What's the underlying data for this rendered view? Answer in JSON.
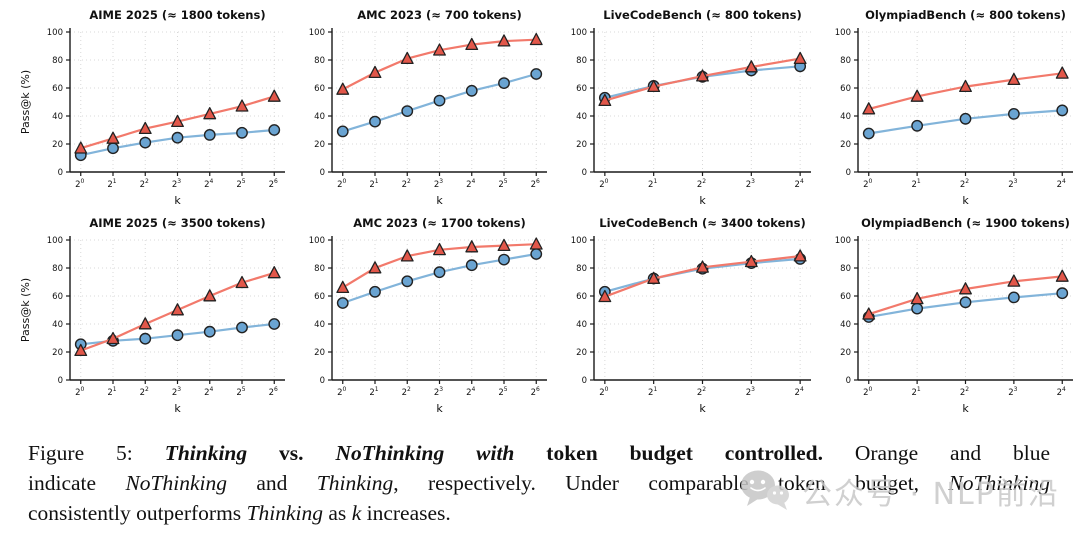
{
  "figure": {
    "caption_lines": [
      [
        {
          "t": "Figure 5: ",
          "b": false,
          "i": false
        },
        {
          "t": "Thinking",
          "b": true,
          "i": true
        },
        {
          "t": " vs. ",
          "b": true,
          "i": false
        },
        {
          "t": "NoThinking",
          "b": true,
          "i": true
        },
        {
          "t": " ",
          "b": true,
          "i": false
        },
        {
          "t": "with",
          "b": true,
          "i": true
        },
        {
          "t": " token budget controlled. ",
          "b": true,
          "i": false
        },
        {
          "t": " Orange and blue",
          "b": false,
          "i": false
        }
      ],
      [
        {
          "t": "indicate ",
          "b": false,
          "i": false
        },
        {
          "t": "NoThinking",
          "b": false,
          "i": true
        },
        {
          "t": " and ",
          "b": false,
          "i": false
        },
        {
          "t": "Thinking",
          "b": false,
          "i": true
        },
        {
          "t": ", respectively. Under comparable token budget, ",
          "b": false,
          "i": false
        },
        {
          "t": "NoThinking",
          "b": false,
          "i": true
        }
      ],
      [
        {
          "t": "consistently outperforms ",
          "b": false,
          "i": false
        },
        {
          "t": "Thinking",
          "b": false,
          "i": true
        },
        {
          "t": " as ",
          "b": false,
          "i": false
        },
        {
          "t": "k",
          "b": false,
          "i": true
        },
        {
          "t": " increases.",
          "b": false,
          "i": false
        }
      ]
    ],
    "watermark": {
      "text": "公众号 · NLP前沿",
      "icon": "wechat-icon",
      "color": "#c8c8c8"
    }
  },
  "colors": {
    "orange_line": "#f2796b",
    "orange_marker_fill": "#e2574a",
    "blue_line": "#82b4da",
    "blue_marker_fill": "#6aa4d2",
    "marker_edge": "#222222",
    "grid": "#d8d8d8",
    "axis": "#1a1a1a",
    "text": "#111111"
  },
  "chart_data": [
    {
      "type": "line",
      "title": "AIME 2025 (≈ 1800 tokens)",
      "xlabel": "k",
      "ylabel": "Pass@k (%)",
      "x_exponents": [
        0,
        1,
        2,
        3,
        4,
        5,
        6
      ],
      "ylim": [
        0,
        100
      ],
      "yticks": [
        0,
        20,
        40,
        60,
        80,
        100
      ],
      "grid": true,
      "legend": "none",
      "series": [
        {
          "name": "NoThinking",
          "marker": "triangle",
          "values": [
            17,
            24,
            31,
            36,
            41.5,
            47,
            54
          ]
        },
        {
          "name": "Thinking",
          "marker": "circle",
          "values": [
            12,
            17,
            21,
            24.5,
            26.5,
            28,
            30
          ]
        }
      ]
    },
    {
      "type": "line",
      "title": "AMC 2023 (≈ 700 tokens)",
      "xlabel": "k",
      "ylabel": "",
      "x_exponents": [
        0,
        1,
        2,
        3,
        4,
        5,
        6
      ],
      "ylim": [
        0,
        100
      ],
      "yticks": [
        0,
        20,
        40,
        60,
        80,
        100
      ],
      "grid": true,
      "legend": "none",
      "series": [
        {
          "name": "NoThinking",
          "marker": "triangle",
          "values": [
            59,
            71,
            81,
            87,
            91,
            93.5,
            94.5
          ]
        },
        {
          "name": "Thinking",
          "marker": "circle",
          "values": [
            29,
            36,
            43.5,
            51,
            58,
            63.5,
            70
          ]
        }
      ]
    },
    {
      "type": "line",
      "title": "LiveCodeBench (≈ 800 tokens)",
      "xlabel": "k",
      "ylabel": "",
      "x_exponents": [
        0,
        1,
        2,
        3,
        4
      ],
      "ylim": [
        0,
        100
      ],
      "yticks": [
        0,
        20,
        40,
        60,
        80,
        100
      ],
      "grid": true,
      "legend": "none",
      "series": [
        {
          "name": "NoThinking",
          "marker": "triangle",
          "values": [
            51,
            61,
            68.5,
            75,
            81
          ]
        },
        {
          "name": "Thinking",
          "marker": "circle",
          "values": [
            53,
            61.5,
            68,
            72.5,
            75.5
          ]
        }
      ]
    },
    {
      "type": "line",
      "title": "OlympiadBench (≈ 800 tokens)",
      "xlabel": "k",
      "ylabel": "",
      "x_exponents": [
        0,
        1,
        2,
        3,
        4
      ],
      "ylim": [
        0,
        100
      ],
      "yticks": [
        0,
        20,
        40,
        60,
        80,
        100
      ],
      "grid": true,
      "legend": "none",
      "series": [
        {
          "name": "NoThinking",
          "marker": "triangle",
          "values": [
            45,
            54,
            61,
            66,
            70.5
          ]
        },
        {
          "name": "Thinking",
          "marker": "circle",
          "values": [
            27.5,
            33,
            38,
            41.5,
            44
          ]
        }
      ]
    },
    {
      "type": "line",
      "title": "AIME 2025 (≈ 3500 tokens)",
      "xlabel": "k",
      "ylabel": "Pass@k (%)",
      "x_exponents": [
        0,
        1,
        2,
        3,
        4,
        5,
        6
      ],
      "ylim": [
        0,
        100
      ],
      "yticks": [
        0,
        20,
        40,
        60,
        80,
        100
      ],
      "grid": true,
      "legend": "none",
      "series": [
        {
          "name": "NoThinking",
          "marker": "triangle",
          "values": [
            21,
            29.5,
            40,
            50,
            60,
            69.5,
            76.5
          ]
        },
        {
          "name": "Thinking",
          "marker": "circle",
          "values": [
            25.5,
            28,
            29.5,
            32,
            34.5,
            37.5,
            40
          ]
        }
      ]
    },
    {
      "type": "line",
      "title": "AMC 2023 (≈ 1700 tokens)",
      "xlabel": "k",
      "ylabel": "",
      "x_exponents": [
        0,
        1,
        2,
        3,
        4,
        5,
        6
      ],
      "ylim": [
        0,
        100
      ],
      "yticks": [
        0,
        20,
        40,
        60,
        80,
        100
      ],
      "grid": true,
      "legend": "none",
      "series": [
        {
          "name": "NoThinking",
          "marker": "triangle",
          "values": [
            66,
            80,
            88.5,
            93,
            95,
            96,
            97
          ]
        },
        {
          "name": "Thinking",
          "marker": "circle",
          "values": [
            55,
            63,
            70.5,
            77,
            82,
            86,
            90
          ]
        }
      ]
    },
    {
      "type": "line",
      "title": "LiveCodeBench (≈ 3400 tokens)",
      "xlabel": "k",
      "ylabel": "",
      "x_exponents": [
        0,
        1,
        2,
        3,
        4
      ],
      "ylim": [
        0,
        100
      ],
      "yticks": [
        0,
        20,
        40,
        60,
        80,
        100
      ],
      "grid": true,
      "legend": "none",
      "series": [
        {
          "name": "NoThinking",
          "marker": "triangle",
          "values": [
            59.5,
            72.5,
            80.5,
            84.5,
            88.5
          ]
        },
        {
          "name": "Thinking",
          "marker": "circle",
          "values": [
            63,
            72.5,
            79.5,
            83.5,
            86.5
          ]
        }
      ]
    },
    {
      "type": "line",
      "title": "OlympiadBench (≈ 1900 tokens)",
      "xlabel": "k",
      "ylabel": "",
      "x_exponents": [
        0,
        1,
        2,
        3,
        4
      ],
      "ylim": [
        0,
        100
      ],
      "yticks": [
        0,
        20,
        40,
        60,
        80,
        100
      ],
      "grid": true,
      "legend": "none",
      "series": [
        {
          "name": "NoThinking",
          "marker": "triangle",
          "values": [
            47,
            58,
            65,
            70.5,
            74
          ]
        },
        {
          "name": "Thinking",
          "marker": "circle",
          "values": [
            45,
            51,
            55.5,
            59,
            62
          ]
        }
      ]
    }
  ]
}
